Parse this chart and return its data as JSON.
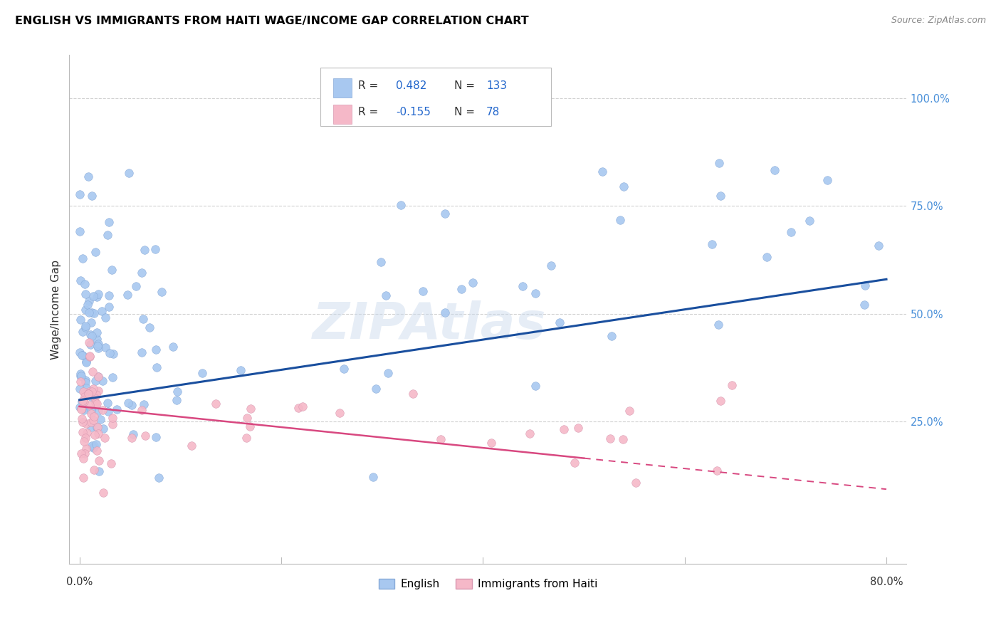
{
  "title": "ENGLISH VS IMMIGRANTS FROM HAITI WAGE/INCOME GAP CORRELATION CHART",
  "source": "Source: ZipAtlas.com",
  "ylabel": "Wage/Income Gap",
  "english_R": 0.482,
  "english_N": 133,
  "haiti_R": -0.155,
  "haiti_N": 78,
  "english_scatter_color": "#a8c8f0",
  "english_line_color": "#1a4f9e",
  "haiti_scatter_color": "#f5b8c8",
  "haiti_line_color": "#d84880",
  "watermark": "ZIPAtlas",
  "bg_color": "#ffffff",
  "grid_color": "#cccccc",
  "right_label_color": "#4a90d9",
  "legend_R_color": "#2266cc",
  "legend_RN_label_color": "#333333"
}
